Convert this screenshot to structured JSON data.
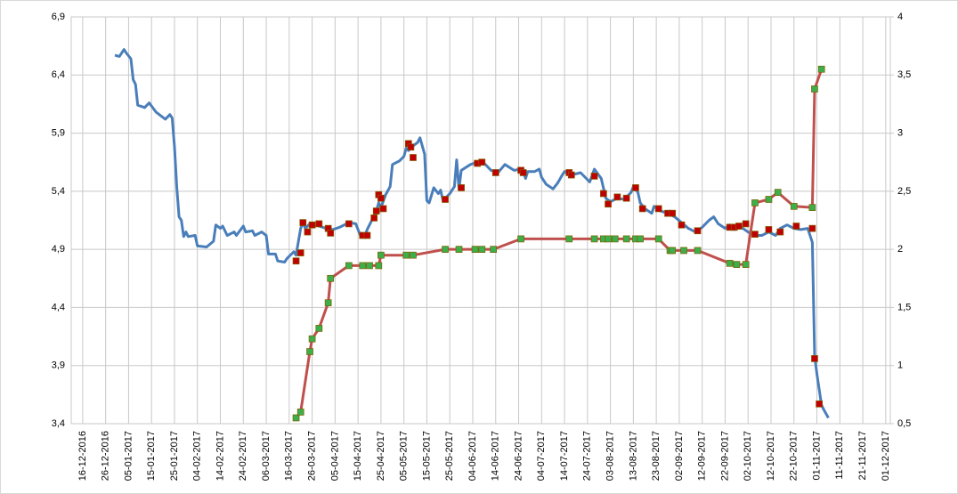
{
  "chart_data": {
    "type": "line",
    "xlim": [
      "2016-12-11",
      "2017-12-03"
    ],
    "xticks": [
      {
        "value": "2016-12-16",
        "label": "16-12-2016"
      },
      {
        "value": "2016-12-26",
        "label": "26-12-2016"
      },
      {
        "value": "2017-01-05",
        "label": "05-01-2017"
      },
      {
        "value": "2017-01-15",
        "label": "15-01-2017"
      },
      {
        "value": "2017-01-25",
        "label": "25-01-2017"
      },
      {
        "value": "2017-02-04",
        "label": "04-02-2017"
      },
      {
        "value": "2017-02-14",
        "label": "14-02-2017"
      },
      {
        "value": "2017-02-24",
        "label": "24-02-2017"
      },
      {
        "value": "2017-03-06",
        "label": "06-03-2017"
      },
      {
        "value": "2017-03-16",
        "label": "16-03-2017"
      },
      {
        "value": "2017-03-26",
        "label": "26-03-2017"
      },
      {
        "value": "2017-04-05",
        "label": "05-04-2017"
      },
      {
        "value": "2017-04-15",
        "label": "15-04-2017"
      },
      {
        "value": "2017-04-25",
        "label": "25-04-2017"
      },
      {
        "value": "2017-05-05",
        "label": "05-05-2017"
      },
      {
        "value": "2017-05-15",
        "label": "15-05-2017"
      },
      {
        "value": "2017-05-25",
        "label": "25-05-2017"
      },
      {
        "value": "2017-06-04",
        "label": "04-06-2017"
      },
      {
        "value": "2017-06-14",
        "label": "14-06-2017"
      },
      {
        "value": "2017-06-24",
        "label": "24-06-2017"
      },
      {
        "value": "2017-07-04",
        "label": "04-07-2017"
      },
      {
        "value": "2017-07-14",
        "label": "14-07-2017"
      },
      {
        "value": "2017-07-24",
        "label": "24-07-2017"
      },
      {
        "value": "2017-08-03",
        "label": "03-08-2017"
      },
      {
        "value": "2017-08-13",
        "label": "13-08-2017"
      },
      {
        "value": "2017-08-23",
        "label": "23-08-2017"
      },
      {
        "value": "2017-09-02",
        "label": "02-09-2017"
      },
      {
        "value": "2017-09-12",
        "label": "12-09-2017"
      },
      {
        "value": "2017-09-22",
        "label": "22-09-2017"
      },
      {
        "value": "2017-10-02",
        "label": "02-10-2017"
      },
      {
        "value": "2017-10-12",
        "label": "12-10-2017"
      },
      {
        "value": "2017-10-22",
        "label": "22-10-2017"
      },
      {
        "value": "2017-11-01",
        "label": "01-11-2017"
      },
      {
        "value": "2017-11-11",
        "label": "11-11-2017"
      },
      {
        "value": "2017-11-21",
        "label": "21-11-2017"
      },
      {
        "value": "2017-12-01",
        "label": "01-12-2017"
      }
    ],
    "ylim": [
      3.4,
      6.9
    ],
    "yticks": [
      {
        "value": 3.4,
        "label": "3,4"
      },
      {
        "value": 3.9,
        "label": "3,9"
      },
      {
        "value": 4.4,
        "label": "4,4"
      },
      {
        "value": 4.9,
        "label": "4,9"
      },
      {
        "value": 5.4,
        "label": "5,4"
      },
      {
        "value": 5.9,
        "label": "5,9"
      },
      {
        "value": 6.4,
        "label": "6,4"
      },
      {
        "value": 6.9,
        "label": "6,9"
      }
    ],
    "y2lim": [
      0.5,
      4
    ],
    "y2ticks": [
      {
        "value": 0.5,
        "label": "0,5"
      },
      1,
      {
        "value": 1.5,
        "label": "1,5"
      },
      2,
      {
        "value": 2.5,
        "label": "2,5"
      },
      3,
      {
        "value": 3.5,
        "label": "3,5"
      },
      4
    ],
    "grid": true,
    "series": [
      {
        "color": "#4a7ebb",
        "axis": "y",
        "line": true,
        "x": [
          "2016-12-30",
          "2017-01-01",
          "2017-01-03",
          "2017-01-04",
          "2017-01-06",
          "2017-01-07",
          "2017-01-08",
          "2017-01-09",
          "2017-01-12",
          "2017-01-14",
          "2017-01-17",
          "2017-01-21",
          "2017-01-23",
          "2017-01-24",
          "2017-01-25",
          "2017-01-26",
          "2017-01-27",
          "2017-01-28",
          "2017-01-29",
          "2017-01-30",
          "2017-01-31",
          "2017-02-03",
          "2017-02-04",
          "2017-02-08",
          "2017-02-11",
          "2017-02-12",
          "2017-02-14",
          "2017-02-15",
          "2017-02-17",
          "2017-02-20",
          "2017-02-21",
          "2017-02-24",
          "2017-02-25",
          "2017-02-28",
          "2017-03-01",
          "2017-03-04",
          "2017-03-06",
          "2017-03-07",
          "2017-03-10",
          "2017-03-11",
          "2017-03-14",
          "2017-03-15",
          "2017-03-18",
          "2017-03-19",
          "2017-03-21",
          "2017-03-22",
          "2017-03-23",
          "2017-03-25",
          "2017-03-29",
          "2017-04-01",
          "2017-04-04",
          "2017-04-07",
          "2017-04-11",
          "2017-04-14",
          "2017-04-16",
          "2017-04-18",
          "2017-04-19",
          "2017-04-21",
          "2017-04-23",
          "2017-04-24",
          "2017-04-25",
          "2017-04-27",
          "2017-04-29",
          "2017-04-30",
          "2017-05-03",
          "2017-05-05",
          "2017-05-06",
          "2017-05-07",
          "2017-05-09",
          "2017-05-11",
          "2017-05-12",
          "2017-05-14",
          "2017-05-15",
          "2017-05-16",
          "2017-05-18",
          "2017-05-20",
          "2017-05-21",
          "2017-05-22",
          "2017-05-25",
          "2017-05-27",
          "2017-05-28",
          "2017-05-29",
          "2017-05-30",
          "2017-06-03",
          "2017-06-06",
          "2017-06-09",
          "2017-06-12",
          "2017-06-15",
          "2017-06-18",
          "2017-06-22",
          "2017-06-25",
          "2017-06-26",
          "2017-06-27",
          "2017-06-28",
          "2017-07-01",
          "2017-07-03",
          "2017-07-04",
          "2017-07-06",
          "2017-07-09",
          "2017-07-11",
          "2017-07-13",
          "2017-07-14",
          "2017-07-17",
          "2017-07-21",
          "2017-07-25",
          "2017-07-27",
          "2017-07-30",
          "2017-08-01",
          "2017-08-03",
          "2017-08-06",
          "2017-08-09",
          "2017-08-12",
          "2017-08-13",
          "2017-08-15",
          "2017-08-16",
          "2017-08-18",
          "2017-08-21",
          "2017-08-22",
          "2017-08-25",
          "2017-08-28",
          "2017-08-31",
          "2017-09-03",
          "2017-09-06",
          "2017-09-09",
          "2017-09-12",
          "2017-09-15",
          "2017-09-17",
          "2017-09-19",
          "2017-09-22",
          "2017-09-24",
          "2017-09-26",
          "2017-09-29",
          "2017-10-02",
          "2017-10-05",
          "2017-10-08",
          "2017-10-11",
          "2017-10-14",
          "2017-10-16",
          "2017-10-19",
          "2017-10-22",
          "2017-10-25",
          "2017-10-28",
          "2017-10-30",
          "2017-10-31",
          "2017-11-01",
          "2017-11-03",
          "2017-11-04",
          "2017-11-06"
        ],
        "values": [
          6.57,
          6.56,
          6.62,
          6.59,
          6.54,
          6.36,
          6.32,
          6.14,
          6.12,
          6.16,
          6.08,
          6.02,
          6.06,
          6.03,
          5.78,
          5.44,
          5.18,
          5.15,
          5.01,
          5.05,
          5.01,
          5.02,
          4.93,
          4.92,
          4.97,
          5.11,
          5.08,
          5.1,
          5.02,
          5.05,
          5.02,
          5.1,
          5.05,
          5.06,
          5.02,
          5.05,
          5.02,
          4.86,
          4.86,
          4.8,
          4.79,
          4.82,
          4.88,
          4.85,
          5.08,
          5.13,
          5.08,
          5.12,
          5.1,
          5.08,
          5.07,
          5.09,
          5.13,
          5.12,
          5.02,
          5.02,
          5.07,
          5.15,
          5.23,
          5.3,
          5.26,
          5.37,
          5.44,
          5.63,
          5.66,
          5.7,
          5.77,
          5.75,
          5.79,
          5.82,
          5.86,
          5.72,
          5.32,
          5.3,
          5.43,
          5.38,
          5.41,
          5.32,
          5.38,
          5.44,
          5.67,
          5.42,
          5.58,
          5.63,
          5.65,
          5.64,
          5.58,
          5.56,
          5.63,
          5.58,
          5.59,
          5.57,
          5.51,
          5.57,
          5.57,
          5.59,
          5.52,
          5.46,
          5.42,
          5.47,
          5.54,
          5.57,
          5.54,
          5.56,
          5.48,
          5.59,
          5.51,
          5.34,
          5.31,
          5.34,
          5.33,
          5.39,
          5.44,
          5.39,
          5.3,
          5.25,
          5.21,
          5.27,
          5.23,
          5.21,
          5.18,
          5.13,
          5.08,
          5.05,
          5.09,
          5.15,
          5.18,
          5.12,
          5.08,
          5.11,
          5.07,
          5.09,
          5.05,
          5.02,
          5.02,
          5.05,
          5.02,
          5.08,
          5.11,
          5.08,
          5.07,
          5.08,
          4.96,
          3.98,
          3.83,
          3.56,
          3.52,
          3.45
        ]
      },
      {
        "color": "#c0504d",
        "marker_color": "#3cae4a",
        "axis": "y2",
        "line": true,
        "x": [
          "2017-03-19",
          "2017-03-21",
          "2017-03-25",
          "2017-03-26",
          "2017-03-29",
          "2017-04-02",
          "2017-04-03",
          "2017-04-11",
          "2017-04-17",
          "2017-04-20",
          "2017-04-24",
          "2017-04-25",
          "2017-05-06",
          "2017-05-09",
          "2017-05-23",
          "2017-05-29",
          "2017-06-05",
          "2017-06-08",
          "2017-06-13",
          "2017-06-25",
          "2017-07-16",
          "2017-07-27",
          "2017-07-31",
          "2017-08-02",
          "2017-08-05",
          "2017-08-10",
          "2017-08-14",
          "2017-08-16",
          "2017-08-24",
          "2017-08-29",
          "2017-08-30",
          "2017-09-04",
          "2017-09-10",
          "2017-09-24",
          "2017-09-27",
          "2017-10-01",
          "2017-10-05",
          "2017-10-11",
          "2017-10-15",
          "2017-10-22",
          "2017-10-30",
          "2017-10-31",
          "2017-11-03"
        ],
        "values": [
          0.55,
          0.6,
          1.12,
          1.23,
          1.32,
          1.54,
          1.75,
          1.86,
          1.86,
          1.86,
          1.86,
          1.95,
          1.95,
          1.95,
          2,
          2,
          2,
          2,
          2,
          2.09,
          2.09,
          2.09,
          2.09,
          2.09,
          2.09,
          2.09,
          2.09,
          2.09,
          2.09,
          1.99,
          1.99,
          1.99,
          1.99,
          1.88,
          1.87,
          1.87,
          2.4,
          2.43,
          2.49,
          2.37,
          2.36,
          3.38,
          3.55
        ]
      },
      {
        "marker_color": "#c00000",
        "axis": "y2",
        "line": false,
        "x": [
          "2017-03-19",
          "2017-03-21",
          "2017-03-22",
          "2017-03-24",
          "2017-03-26",
          "2017-03-29",
          "2017-04-02",
          "2017-04-03",
          "2017-04-11",
          "2017-04-17",
          "2017-04-19",
          "2017-04-22",
          "2017-04-23",
          "2017-04-24",
          "2017-04-25",
          "2017-04-26",
          "2017-05-07",
          "2017-05-08",
          "2017-05-09",
          "2017-05-23",
          "2017-05-30",
          "2017-06-06",
          "2017-06-08",
          "2017-06-14",
          "2017-06-25",
          "2017-06-26",
          "2017-07-16",
          "2017-07-17",
          "2017-07-27",
          "2017-07-31",
          "2017-08-02",
          "2017-08-06",
          "2017-08-10",
          "2017-08-14",
          "2017-08-17",
          "2017-08-24",
          "2017-08-28",
          "2017-08-30",
          "2017-09-03",
          "2017-09-10",
          "2017-09-24",
          "2017-09-26",
          "2017-09-28",
          "2017-10-01",
          "2017-10-05",
          "2017-10-11",
          "2017-10-16",
          "2017-10-23",
          "2017-10-30",
          "2017-10-31",
          "2017-11-02"
        ],
        "values": [
          1.9,
          1.97,
          2.23,
          2.15,
          2.21,
          2.22,
          2.18,
          2.14,
          2.22,
          2.12,
          2.12,
          2.27,
          2.33,
          2.47,
          2.44,
          2.35,
          2.91,
          2.88,
          2.79,
          2.43,
          2.53,
          2.74,
          2.75,
          2.66,
          2.68,
          2.66,
          2.66,
          2.64,
          2.63,
          2.48,
          2.39,
          2.45,
          2.44,
          2.53,
          2.35,
          2.35,
          2.31,
          2.31,
          2.21,
          2.16,
          2.19,
          2.19,
          2.2,
          2.22,
          2.13,
          2.17,
          2.15,
          2.2,
          2.18,
          1.06,
          0.67
        ]
      }
    ]
  }
}
